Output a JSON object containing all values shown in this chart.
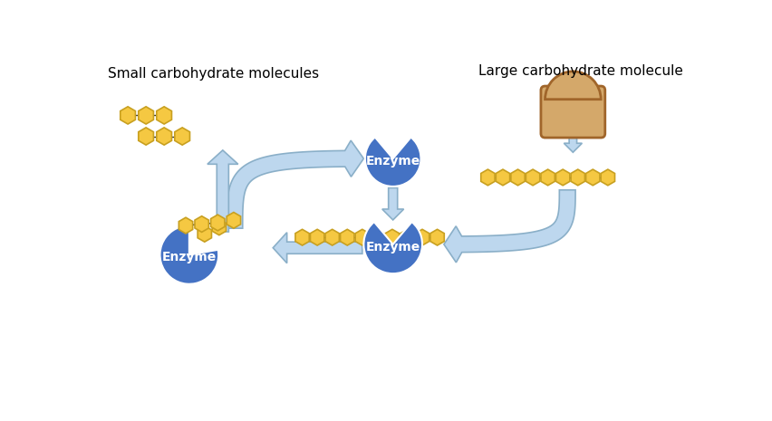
{
  "bg_color": "#ffffff",
  "label_small": "Small carbohydrate molecules",
  "label_large": "Large carbohydrate molecule",
  "label_enzyme": "Enzyme",
  "enzyme_color": "#4472C4",
  "arrow_fill": "#BDD7EE",
  "arrow_edge": "#8aafc8",
  "sugar_color": "#F5C842",
  "sugar_edge": "#c8a020",
  "bread_fill": "#D4A86A",
  "bread_crust": "#A0652A",
  "label_font_size": 11,
  "enzyme_font_size": 10
}
